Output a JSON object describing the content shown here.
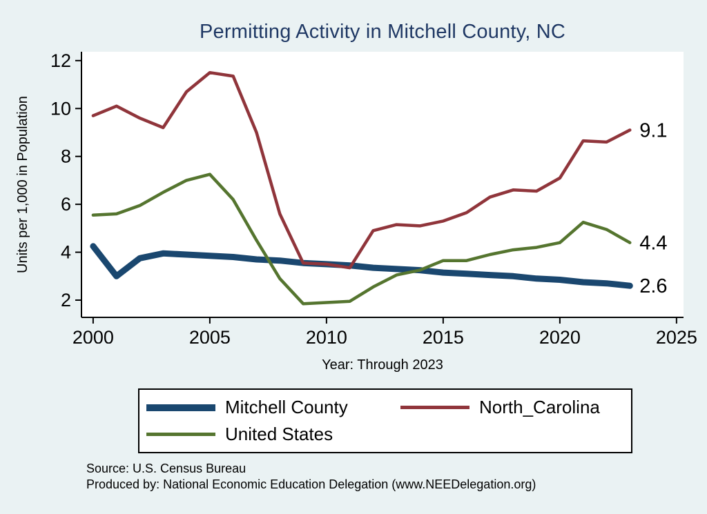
{
  "colors": {
    "background": "#eaf2f3",
    "plot_background": "#ffffff",
    "title": "#1f3864",
    "axis": "#000000",
    "mitchell_county": "#1a476f",
    "north_carolina": "#90353b",
    "united_states": "#55752f"
  },
  "source": {
    "line1": "Source: U.S. Census Bureau",
    "line2": "Produced by: National Economic Education Delegation (www.NEEDelegation.org)"
  },
  "chart_data": {
    "type": "line",
    "title": "Permitting Activity in Mitchell County, NC",
    "xlabel": "Year: Through 2023",
    "ylabel": "Units per 1,000 in Population",
    "grid": false,
    "legend_position": "bottom",
    "xlim": [
      1999.5,
      2025.3
    ],
    "ylim": [
      1.28,
      12.37
    ],
    "xticks": [
      2000,
      2005,
      2010,
      2015,
      2020,
      2025
    ],
    "yticks": [
      2,
      4,
      6,
      8,
      10,
      12
    ],
    "x": [
      2000,
      2001,
      2002,
      2003,
      2004,
      2005,
      2006,
      2007,
      2008,
      2009,
      2010,
      2011,
      2012,
      2013,
      2014,
      2015,
      2016,
      2017,
      2018,
      2019,
      2020,
      2021,
      2022,
      2023
    ],
    "series": [
      {
        "name": "Mitchell County",
        "color": "#1a476f",
        "width": 9,
        "end_label": "2.6",
        "values": [
          4.25,
          3.0,
          3.75,
          3.95,
          3.9,
          3.85,
          3.8,
          3.7,
          3.65,
          3.55,
          3.5,
          3.45,
          3.35,
          3.3,
          3.25,
          3.15,
          3.1,
          3.05,
          3.0,
          2.9,
          2.85,
          2.75,
          2.7,
          2.6
        ]
      },
      {
        "name": "North_Carolina",
        "color": "#90353b",
        "width": 4.5,
        "end_label": "9.1",
        "values": [
          9.7,
          10.1,
          9.6,
          9.2,
          10.7,
          11.5,
          11.35,
          9.0,
          5.6,
          3.55,
          3.5,
          3.35,
          4.9,
          5.15,
          5.1,
          5.3,
          5.65,
          6.3,
          6.6,
          6.55,
          7.1,
          8.65,
          8.6,
          9.1
        ]
      },
      {
        "name": "United States",
        "color": "#55752f",
        "width": 4.5,
        "end_label": "4.4",
        "values": [
          5.55,
          5.6,
          5.95,
          6.5,
          7.0,
          7.25,
          6.2,
          4.5,
          2.9,
          1.85,
          1.9,
          1.95,
          2.55,
          3.05,
          3.25,
          3.65,
          3.65,
          3.9,
          4.1,
          4.2,
          4.4,
          5.25,
          4.95,
          4.4
        ]
      }
    ]
  }
}
